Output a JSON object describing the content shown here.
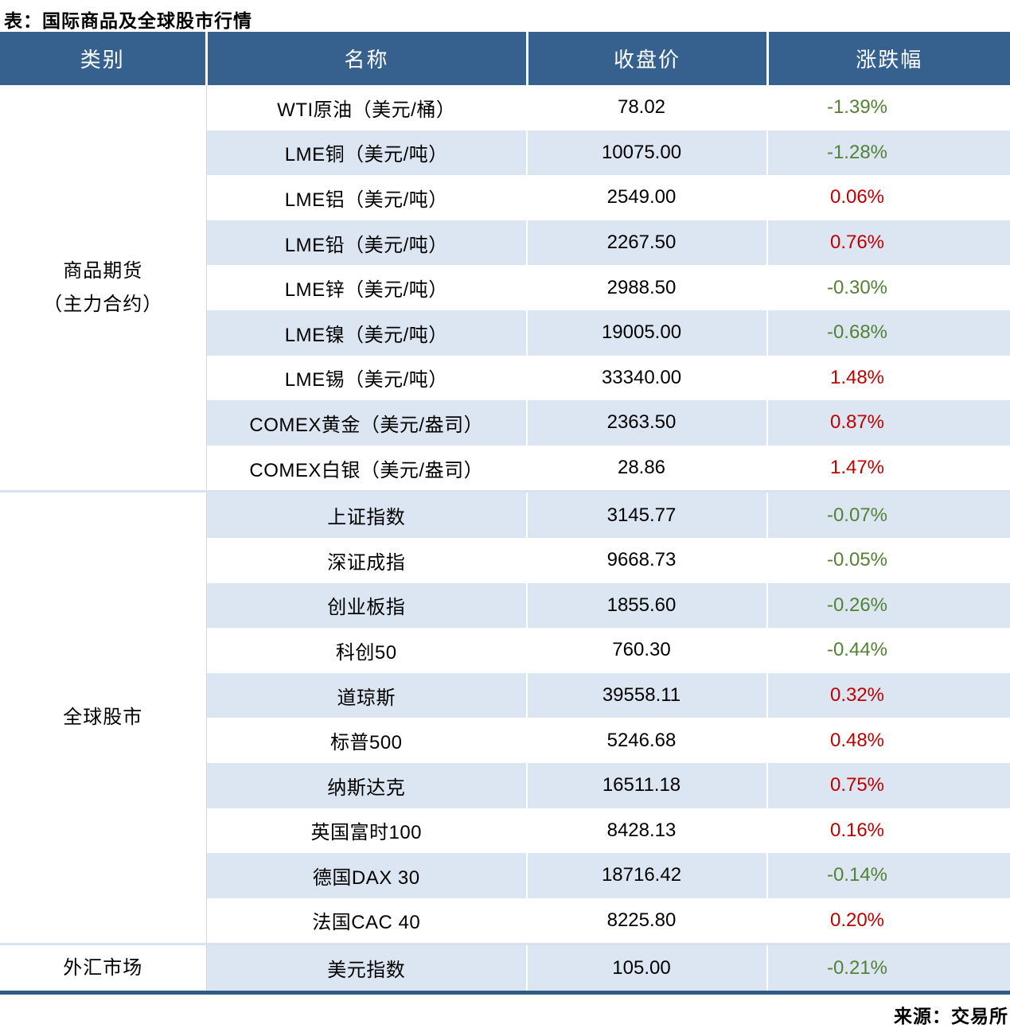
{
  "title": "表：国际商品及全球股市行情",
  "source": "来源：交易所",
  "colors": {
    "header_bg": "#36618F",
    "header_text": "#FFFFFF",
    "row_alt_bg": "#DCE6F2",
    "up_red": "#C00000",
    "down_green": "#538135",
    "section_divider": "#D9E2F0",
    "bottom_rule": "#2E5C86"
  },
  "table": {
    "headers": [
      "类别",
      "名称",
      "收盘价",
      "涨跌幅"
    ],
    "sections": [
      {
        "category_lines": [
          "商品期货",
          "（主力合约）"
        ],
        "rows": [
          {
            "name": "WTI原油（美元/桶）",
            "close": "78.02",
            "change": "-1.39%"
          },
          {
            "name": "LME铜（美元/吨）",
            "close": "10075.00",
            "change": "-1.28%"
          },
          {
            "name": "LME铝（美元/吨）",
            "close": "2549.00",
            "change": "0.06%"
          },
          {
            "name": "LME铅（美元/吨）",
            "close": "2267.50",
            "change": "0.76%"
          },
          {
            "name": "LME锌（美元/吨）",
            "close": "2988.50",
            "change": "-0.30%"
          },
          {
            "name": "LME镍（美元/吨）",
            "close": "19005.00",
            "change": "-0.68%"
          },
          {
            "name": "LME锡（美元/吨）",
            "close": "33340.00",
            "change": "1.48%"
          },
          {
            "name": "COMEX黄金（美元/盎司）",
            "close": "2363.50",
            "change": "0.87%"
          },
          {
            "name": "COMEX白银（美元/盎司）",
            "close": "28.86",
            "change": "1.47%"
          }
        ]
      },
      {
        "category_lines": [
          "全球股市"
        ],
        "rows": [
          {
            "name": "上证指数",
            "close": "3145.77",
            "change": "-0.07%"
          },
          {
            "name": "深证成指",
            "close": "9668.73",
            "change": "-0.05%"
          },
          {
            "name": "创业板指",
            "close": "1855.60",
            "change": "-0.26%"
          },
          {
            "name": "科创50",
            "close": "760.30",
            "change": "-0.44%"
          },
          {
            "name": "道琼斯",
            "close": "39558.11",
            "change": "0.32%"
          },
          {
            "name": "标普500",
            "close": "5246.68",
            "change": "0.48%"
          },
          {
            "name": "纳斯达克",
            "close": "16511.18",
            "change": "0.75%"
          },
          {
            "name": "英国富时100",
            "close": "8428.13",
            "change": "0.16%"
          },
          {
            "name": "德国DAX 30",
            "close": "18716.42",
            "change": "-0.14%"
          },
          {
            "name": "法国CAC 40",
            "close": "8225.80",
            "change": "0.20%"
          }
        ]
      },
      {
        "category_lines": [
          "外汇市场"
        ],
        "rows": [
          {
            "name": "美元指数",
            "close": "105.00",
            "change": "-0.21%"
          }
        ]
      }
    ]
  },
  "chart_data": {
    "type": "table",
    "title": "表：国际商品及全球股市行情",
    "columns": [
      "类别",
      "名称",
      "收盘价",
      "涨跌幅"
    ],
    "rows": [
      [
        "商品期货（主力合约）",
        "WTI原油（美元/桶）",
        78.02,
        -1.39
      ],
      [
        "商品期货（主力合约）",
        "LME铜（美元/吨）",
        10075.0,
        -1.28
      ],
      [
        "商品期货（主力合约）",
        "LME铝（美元/吨）",
        2549.0,
        0.06
      ],
      [
        "商品期货（主力合约）",
        "LME铅（美元/吨）",
        2267.5,
        0.76
      ],
      [
        "商品期货（主力合约）",
        "LME锌（美元/吨）",
        2988.5,
        -0.3
      ],
      [
        "商品期货（主力合约）",
        "LME镍（美元/吨）",
        19005.0,
        -0.68
      ],
      [
        "商品期货（主力合约）",
        "LME锡（美元/吨）",
        33340.0,
        1.48
      ],
      [
        "商品期货（主力合约）",
        "COMEX黄金（美元/盎司）",
        2363.5,
        0.87
      ],
      [
        "商品期货（主力合约）",
        "COMEX白银（美元/盎司）",
        28.86,
        1.47
      ],
      [
        "全球股市",
        "上证指数",
        3145.77,
        -0.07
      ],
      [
        "全球股市",
        "深证成指",
        9668.73,
        -0.05
      ],
      [
        "全球股市",
        "创业板指",
        1855.6,
        -0.26
      ],
      [
        "全球股市",
        "科创50",
        760.3,
        -0.44
      ],
      [
        "全球股市",
        "道琼斯",
        39558.11,
        0.32
      ],
      [
        "全球股市",
        "标普500",
        5246.68,
        0.48
      ],
      [
        "全球股市",
        "纳斯达克",
        16511.18,
        0.75
      ],
      [
        "全球股市",
        "英国富时100",
        8428.13,
        0.16
      ],
      [
        "全球股市",
        "德国DAX 30",
        18716.42,
        -0.14
      ],
      [
        "全球股市",
        "法国CAC 40",
        8225.8,
        0.2
      ],
      [
        "外汇市场",
        "美元指数",
        105.0,
        -0.21
      ]
    ],
    "legend": {
      "positive_change_color": "#C00000",
      "negative_change_color": "#538135"
    },
    "source": "来源：交易所"
  }
}
